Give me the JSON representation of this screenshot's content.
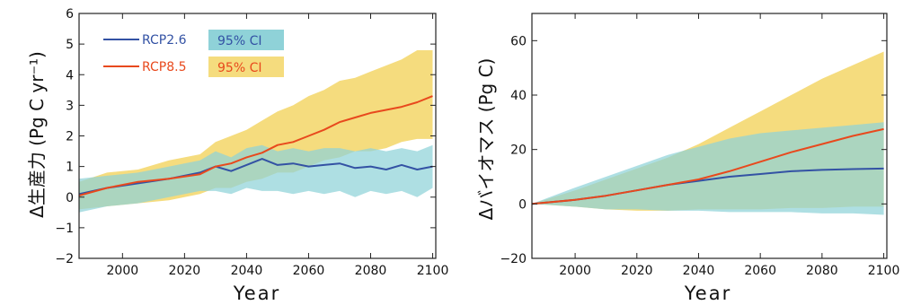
{
  "colors": {
    "rcp26": "#3352a4",
    "rcp85": "#e8491d",
    "ci26": "#8fd2d8",
    "ci85": "#f5dc7e",
    "overlap": "#9ccf9a"
  },
  "chart_data": [
    {
      "type": "line",
      "panel": "left",
      "xlabel": "Year",
      "ylabel": "Δ生産力 (Pg C yr⁻¹)",
      "xlim": [
        1986,
        2101
      ],
      "ylim": [
        -2,
        6
      ],
      "x_ticks": [
        "2000",
        "2020",
        "2040",
        "2060",
        "2080",
        "2100"
      ],
      "y_ticks": [
        "−2",
        "−1",
        "0",
        "1",
        "2",
        "3",
        "4",
        "5",
        "6"
      ],
      "legend": [
        {
          "series": "RCP2.6",
          "ci": "95% CI"
        },
        {
          "series": "RCP8.5",
          "ci": "95% CI"
        }
      ],
      "legend_position": "top-left",
      "x": [
        1986,
        1995,
        2005,
        2015,
        2025,
        2030,
        2035,
        2040,
        2045,
        2050,
        2055,
        2060,
        2065,
        2070,
        2075,
        2080,
        2085,
        2090,
        2095,
        2100
      ],
      "series": [
        {
          "name": "RCP2.6",
          "values": [
            0.1,
            0.3,
            0.45,
            0.6,
            0.8,
            1.0,
            0.85,
            1.05,
            1.25,
            1.05,
            1.1,
            1.0,
            1.05,
            1.1,
            0.95,
            1.0,
            0.9,
            1.05,
            0.9,
            1.0
          ],
          "ci_lower": [
            -0.5,
            -0.3,
            -0.2,
            0.0,
            0.2,
            0.2,
            0.1,
            0.3,
            0.2,
            0.2,
            0.1,
            0.2,
            0.1,
            0.2,
            0.0,
            0.2,
            0.1,
            0.2,
            0.0,
            0.3
          ],
          "ci_upper": [
            0.6,
            0.7,
            0.8,
            1.0,
            1.2,
            1.5,
            1.3,
            1.6,
            1.7,
            1.5,
            1.6,
            1.5,
            1.6,
            1.6,
            1.5,
            1.6,
            1.5,
            1.6,
            1.5,
            1.7
          ]
        },
        {
          "name": "RCP8.5",
          "values": [
            0.05,
            0.3,
            0.5,
            0.6,
            0.75,
            1.0,
            1.1,
            1.3,
            1.45,
            1.7,
            1.8,
            2.0,
            2.2,
            2.45,
            2.6,
            2.75,
            2.85,
            2.95,
            3.1,
            3.3
          ],
          "ci_lower": [
            -0.4,
            -0.3,
            -0.2,
            -0.1,
            0.1,
            0.3,
            0.3,
            0.5,
            0.6,
            0.8,
            0.8,
            1.0,
            1.2,
            1.3,
            1.5,
            1.5,
            1.6,
            1.8,
            1.9,
            1.9
          ],
          "ci_upper": [
            0.5,
            0.8,
            0.9,
            1.2,
            1.4,
            1.8,
            2.0,
            2.2,
            2.5,
            2.8,
            3.0,
            3.3,
            3.5,
            3.8,
            3.9,
            4.1,
            4.3,
            4.5,
            4.8,
            4.8
          ]
        }
      ]
    },
    {
      "type": "line",
      "panel": "right",
      "xlabel": "Year",
      "ylabel": "Δバイオマス (Pg C)",
      "xlim": [
        1986,
        2101
      ],
      "ylim": [
        -20,
        70
      ],
      "x_ticks": [
        "2000",
        "2020",
        "2040",
        "2060",
        "2080",
        "2100"
      ],
      "y_ticks": [
        "−20",
        "0",
        "20",
        "40",
        "60"
      ],
      "x": [
        1986,
        2000,
        2010,
        2020,
        2030,
        2040,
        2050,
        2060,
        2070,
        2080,
        2090,
        2100
      ],
      "series": [
        {
          "name": "RCP2.6",
          "values": [
            0,
            1.5,
            3,
            5,
            7,
            8.5,
            10,
            11,
            12,
            12.5,
            12.8,
            13
          ],
          "ci_lower": [
            0,
            -1,
            -2,
            -2,
            -2.5,
            -2.5,
            -3,
            -3,
            -3,
            -3.5,
            -3.5,
            -4
          ],
          "ci_upper": [
            0,
            6,
            10,
            14,
            18,
            21,
            24,
            26,
            27,
            28,
            29,
            30
          ]
        },
        {
          "name": "RCP8.5",
          "values": [
            0,
            1.5,
            3,
            5,
            7,
            9,
            12,
            15.5,
            19,
            22,
            25,
            27.5
          ],
          "ci_lower": [
            0,
            -1,
            -2,
            -2.5,
            -2.5,
            -2,
            -2,
            -2,
            -1.5,
            -1.5,
            -1,
            -1
          ],
          "ci_upper": [
            0,
            5,
            9,
            13,
            17,
            22,
            28,
            34,
            40,
            46,
            51,
            56
          ]
        }
      ]
    }
  ]
}
